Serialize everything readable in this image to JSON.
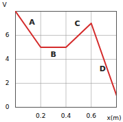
{
  "chart_data": {
    "type": "line",
    "x": [
      0,
      0.2,
      0.4,
      0.6,
      0.8
    ],
    "values": [
      8,
      5,
      5,
      7,
      1
    ],
    "color": "#d42a2a",
    "x_label": "x(m)",
    "y_label": "V",
    "xlim": [
      0,
      0.8
    ],
    "ylim": [
      0,
      8
    ],
    "xticks": [
      0.2,
      0.4,
      0.6
    ],
    "yticks": [
      0,
      2,
      4,
      6
    ],
    "grid": true,
    "annotations": [
      {
        "text": "A",
        "x": 0.13,
        "y": 7.1
      },
      {
        "text": "B",
        "x": 0.3,
        "y": 4.4
      },
      {
        "text": "C",
        "x": 0.49,
        "y": 7
      },
      {
        "text": "D",
        "x": 0.69,
        "y": 3.2
      }
    ]
  }
}
